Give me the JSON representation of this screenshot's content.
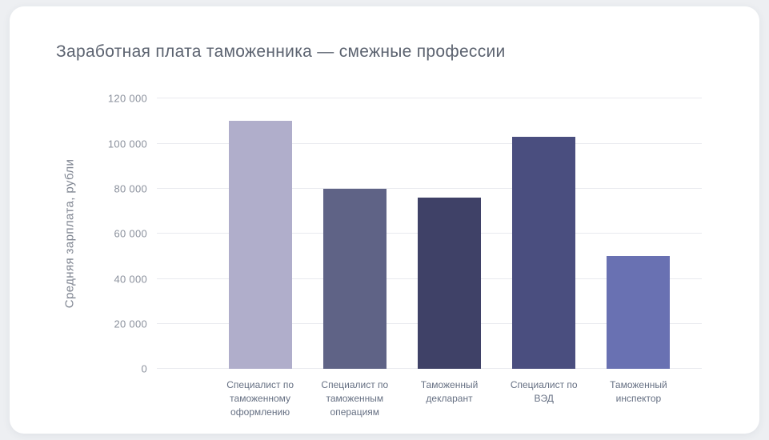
{
  "page": {
    "background": "#edeff2",
    "card_background": "#ffffff"
  },
  "chart_data": {
    "type": "bar",
    "title": "Заработная плата таможенника — смежные профессии",
    "ylabel": "Средняя зарплата, рубли",
    "xlabel": "",
    "categories": [
      "Специалист по таможенному оформлению",
      "Специалист по таможенным операциям",
      "Таможенный декларант",
      "Специалист по ВЭД",
      "Таможенный инспектор"
    ],
    "values": [
      110000,
      80000,
      76000,
      103000,
      50000
    ],
    "bar_colors": [
      "#b0aecb",
      "#5f6386",
      "#3f4167",
      "#4a4e7f",
      "#6971b2"
    ],
    "ylim": [
      0,
      120000
    ],
    "yticks": [
      0,
      20000,
      40000,
      60000,
      80000,
      100000,
      120000
    ],
    "ytick_labels": [
      "0",
      "20 000",
      "40 000",
      "60 000",
      "80 000",
      "100 000",
      "120 000"
    ],
    "grid": true,
    "legend": false
  }
}
